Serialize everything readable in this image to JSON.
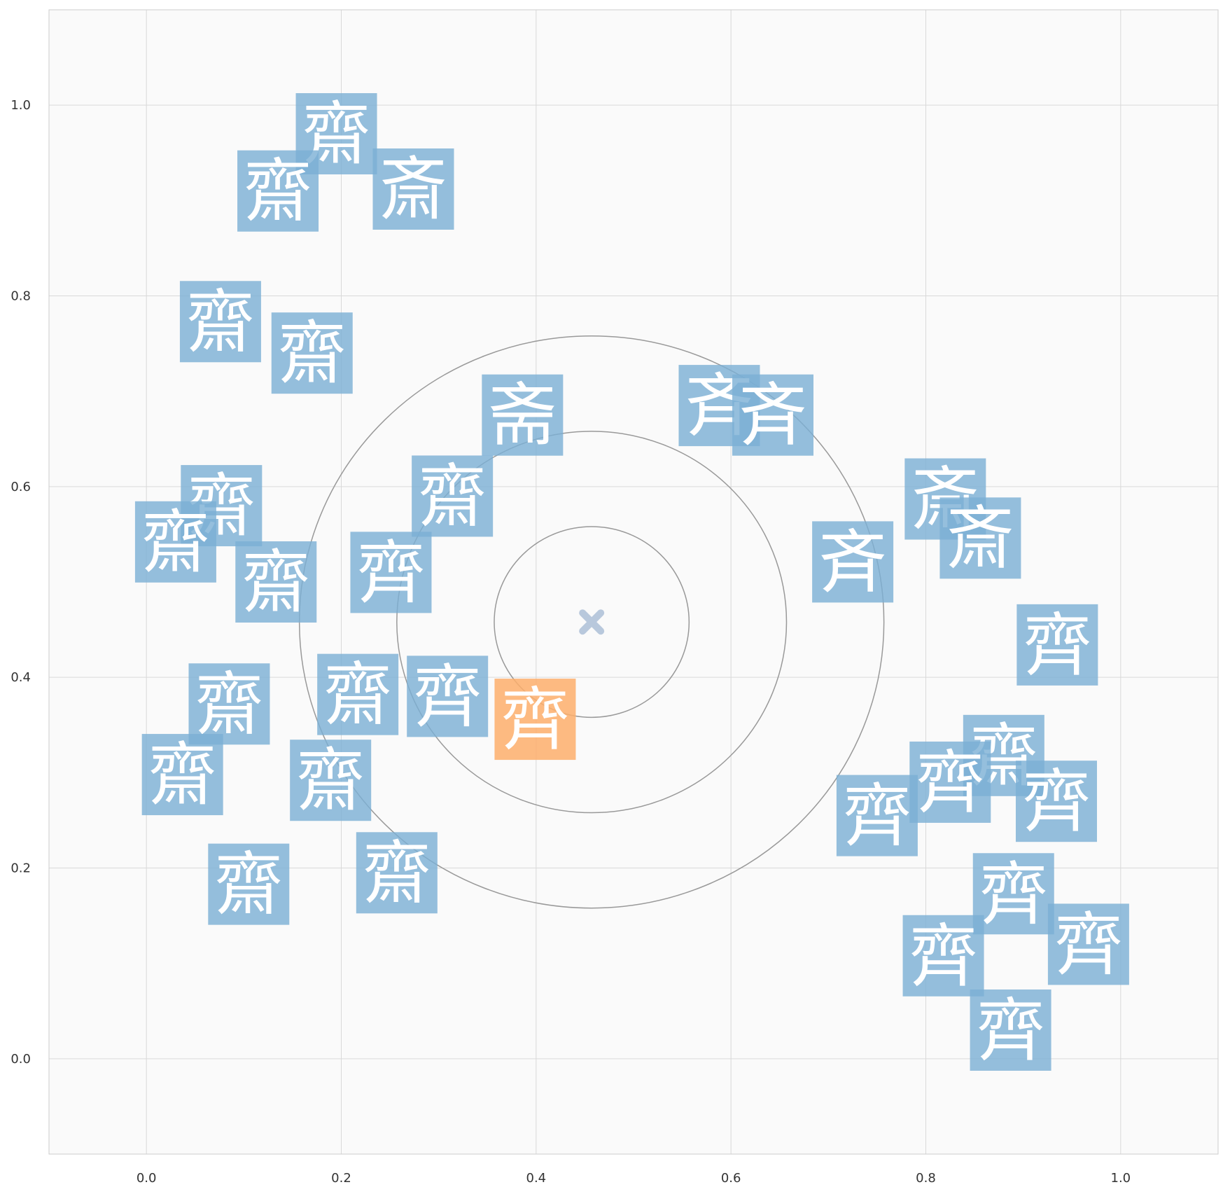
{
  "chart_data": {
    "type": "scatter",
    "title": "",
    "xlabel": "",
    "ylabel": "",
    "xlim": [
      -0.1,
      1.1
    ],
    "ylim": [
      -0.1,
      1.1
    ],
    "xticks": [
      "0.0",
      "0.2",
      "0.4",
      "0.6",
      "0.8",
      "1.0"
    ],
    "yticks": [
      "0.0",
      "0.2",
      "0.4",
      "0.6",
      "0.8",
      "1.0"
    ],
    "grid": true,
    "center": {
      "x": 0.457,
      "y": 0.458,
      "marker": "x",
      "color": "#b8c8dc"
    },
    "rings": [
      {
        "radius": 0.1
      },
      {
        "radius": 0.2
      },
      {
        "radius": 0.3
      }
    ],
    "colors": {
      "default": "#7bafd4",
      "highlight": "#fdae6b",
      "grid": "#d9d9d9",
      "ring": "#999999",
      "background": "#fafafa"
    },
    "points": [
      {
        "x": 0.195,
        "y": 0.97,
        "label": "齋",
        "highlight": false
      },
      {
        "x": 0.135,
        "y": 0.91,
        "label": "齋",
        "highlight": false
      },
      {
        "x": 0.274,
        "y": 0.912,
        "label": "斎",
        "highlight": false
      },
      {
        "x": 0.076,
        "y": 0.773,
        "label": "齋",
        "highlight": false
      },
      {
        "x": 0.17,
        "y": 0.74,
        "label": "齋",
        "highlight": false
      },
      {
        "x": 0.386,
        "y": 0.675,
        "label": "斋",
        "highlight": false
      },
      {
        "x": 0.588,
        "y": 0.685,
        "label": "斉",
        "highlight": false
      },
      {
        "x": 0.643,
        "y": 0.675,
        "label": "斉",
        "highlight": false
      },
      {
        "x": 0.82,
        "y": 0.587,
        "label": "斎",
        "highlight": false
      },
      {
        "x": 0.856,
        "y": 0.546,
        "label": "斎",
        "highlight": false
      },
      {
        "x": 0.077,
        "y": 0.58,
        "label": "齋",
        "highlight": false
      },
      {
        "x": 0.03,
        "y": 0.542,
        "label": "齋",
        "highlight": false
      },
      {
        "x": 0.314,
        "y": 0.59,
        "label": "齋",
        "highlight": false
      },
      {
        "x": 0.725,
        "y": 0.521,
        "label": "斉",
        "highlight": false
      },
      {
        "x": 0.133,
        "y": 0.5,
        "label": "齋",
        "highlight": false
      },
      {
        "x": 0.251,
        "y": 0.51,
        "label": "齊",
        "highlight": false
      },
      {
        "x": 0.935,
        "y": 0.434,
        "label": "齊",
        "highlight": false
      },
      {
        "x": 0.085,
        "y": 0.372,
        "label": "齋",
        "highlight": false
      },
      {
        "x": 0.217,
        "y": 0.382,
        "label": "齋",
        "highlight": false
      },
      {
        "x": 0.309,
        "y": 0.38,
        "label": "齊",
        "highlight": false
      },
      {
        "x": 0.399,
        "y": 0.356,
        "label": "齊",
        "highlight": true
      },
      {
        "x": 0.037,
        "y": 0.298,
        "label": "齋",
        "highlight": false
      },
      {
        "x": 0.189,
        "y": 0.292,
        "label": "齋",
        "highlight": false
      },
      {
        "x": 0.88,
        "y": 0.318,
        "label": "齋",
        "highlight": false
      },
      {
        "x": 0.825,
        "y": 0.29,
        "label": "齊",
        "highlight": false
      },
      {
        "x": 0.934,
        "y": 0.27,
        "label": "齊",
        "highlight": false
      },
      {
        "x": 0.75,
        "y": 0.255,
        "label": "齊",
        "highlight": false
      },
      {
        "x": 0.105,
        "y": 0.183,
        "label": "齋",
        "highlight": false
      },
      {
        "x": 0.257,
        "y": 0.195,
        "label": "齋",
        "highlight": false
      },
      {
        "x": 0.89,
        "y": 0.173,
        "label": "齊",
        "highlight": false
      },
      {
        "x": 0.967,
        "y": 0.12,
        "label": "齊",
        "highlight": false
      },
      {
        "x": 0.818,
        "y": 0.108,
        "label": "齊",
        "highlight": false
      },
      {
        "x": 0.887,
        "y": 0.03,
        "label": "齊",
        "highlight": false
      }
    ]
  }
}
